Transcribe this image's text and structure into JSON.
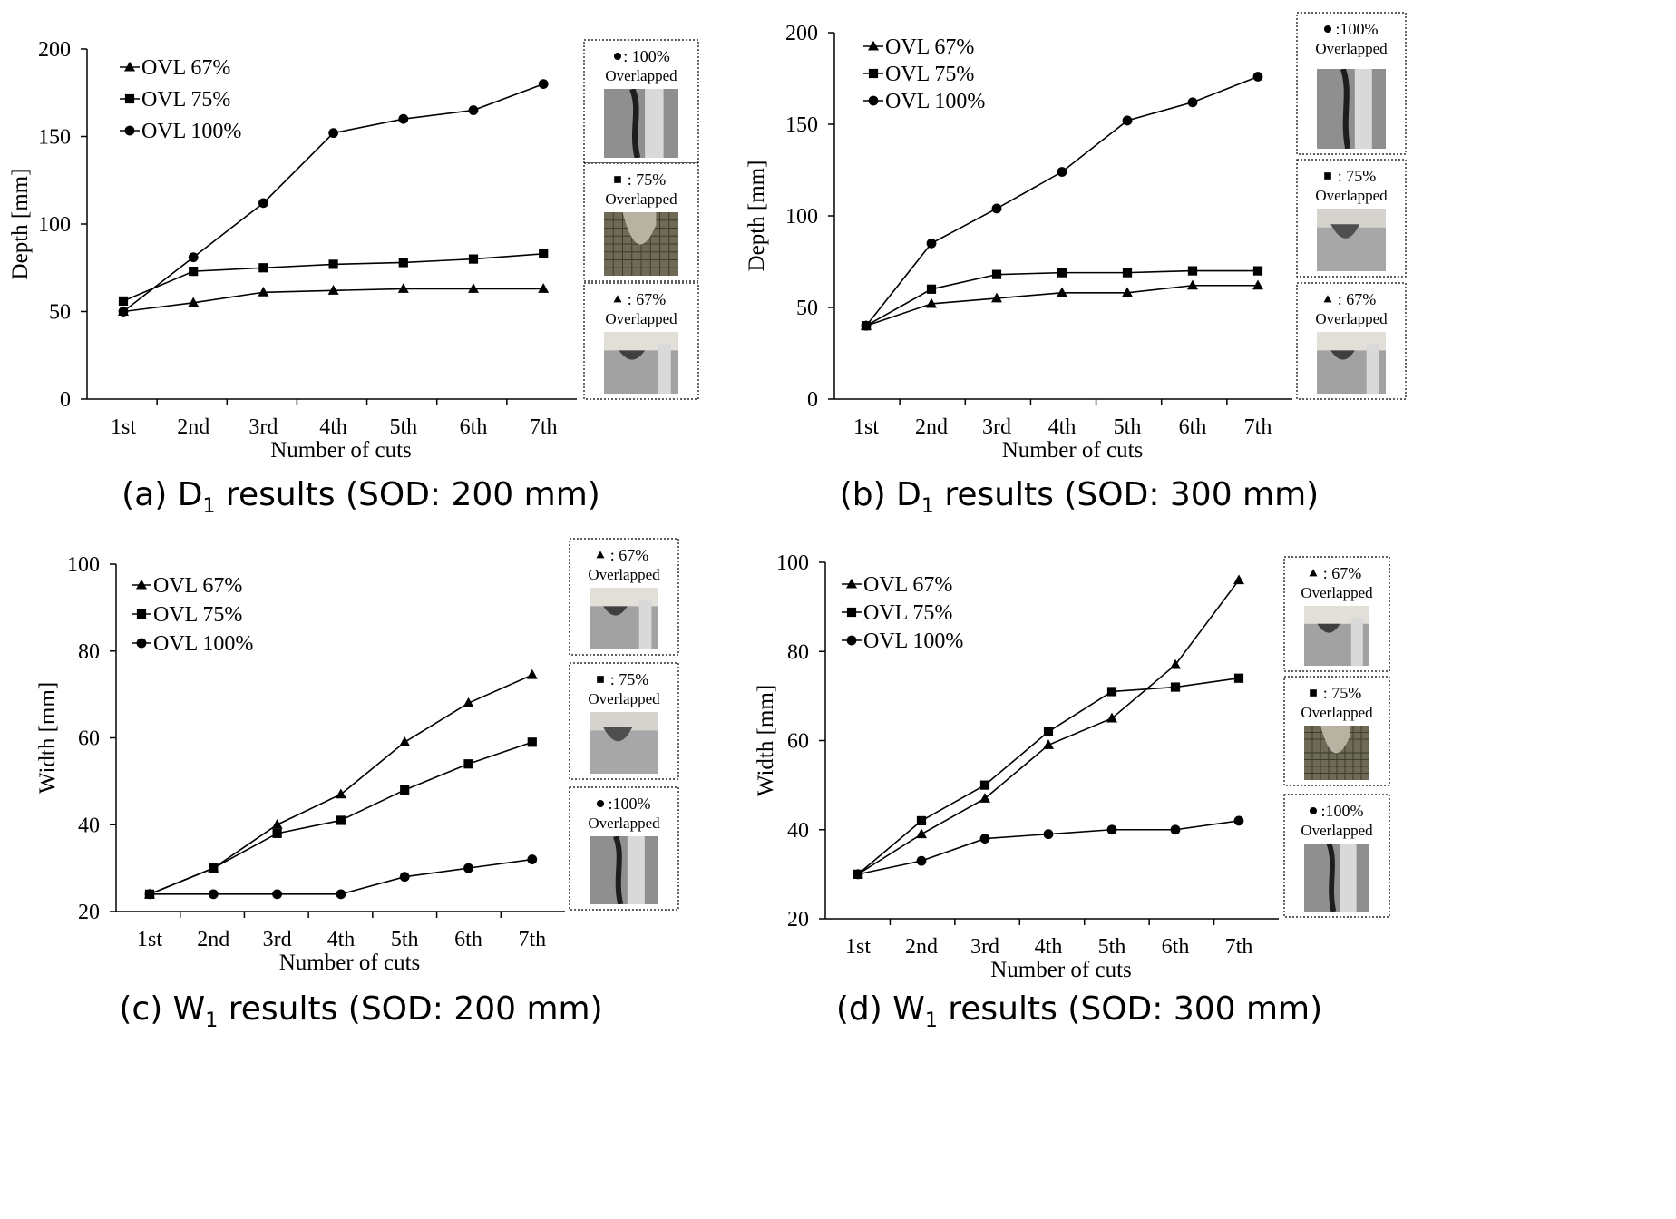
{
  "chart_data": [
    {
      "type": "line",
      "caption": {
        "pre": "(a) D",
        "sub": "1",
        "post": " results (SOD: 200 mm)"
      },
      "categories": [
        "1st",
        "2nd",
        "3rd",
        "4th",
        "5th",
        "6th",
        "7th"
      ],
      "xlabel": "Number of cuts",
      "ylabel": "Depth [mm]",
      "ylim": [
        0,
        200
      ],
      "yticks": [
        0,
        50,
        100,
        150,
        200
      ],
      "legend_position": "top-left",
      "series": [
        {
          "name": "OVL 67%",
          "marker": "triangle",
          "values": [
            50,
            55,
            61,
            62,
            63,
            63,
            63
          ]
        },
        {
          "name": "OVL 75%",
          "marker": "square",
          "values": [
            56,
            73,
            75,
            77,
            78,
            80,
            83
          ]
        },
        {
          "name": "OVL 100%",
          "marker": "circle",
          "values": [
            50,
            81,
            112,
            152,
            160,
            165,
            180
          ]
        }
      ],
      "insets": [
        {
          "marker": "circle",
          "label": ": 100%",
          "sub": "Overlapped",
          "photo": "slot-100"
        },
        {
          "marker": "square",
          "label": ": 75%",
          "sub": "Overlapped",
          "photo": "grid-75"
        },
        {
          "marker": "triangle",
          "label": ": 67%",
          "sub": "Overlapped",
          "photo": "groove-67"
        }
      ]
    },
    {
      "type": "line",
      "caption": {
        "pre": "(b) D",
        "sub": "1",
        "post": " results (SOD: 300 mm)"
      },
      "categories": [
        "1st",
        "2nd",
        "3rd",
        "4th",
        "5th",
        "6th",
        "7th"
      ],
      "xlabel": "Number of cuts",
      "ylabel": "Depth [mm]",
      "ylim": [
        0,
        200
      ],
      "yticks": [
        0,
        50,
        100,
        150,
        200
      ],
      "legend_position": "top-left",
      "series": [
        {
          "name": "OVL 67%",
          "marker": "triangle",
          "values": [
            40,
            52,
            55,
            58,
            58,
            62,
            62
          ]
        },
        {
          "name": "OVL 75%",
          "marker": "square",
          "values": [
            40,
            60,
            68,
            69,
            69,
            70,
            70
          ]
        },
        {
          "name": "OVL 100%",
          "marker": "circle",
          "values": [
            40,
            85,
            104,
            124,
            152,
            162,
            176
          ]
        }
      ],
      "insets": [
        {
          "marker": "circle",
          "label": ":100%",
          "sub": "Overlapped",
          "photo": "slot-100"
        },
        {
          "marker": "square",
          "label": ": 75%",
          "sub": "Overlapped",
          "photo": "groove-75"
        },
        {
          "marker": "triangle",
          "label": ": 67%",
          "sub": "Overlapped",
          "photo": "groove-67"
        }
      ]
    },
    {
      "type": "line",
      "caption": {
        "pre": "(c) W",
        "sub": "1",
        "post": " results (SOD: 200 mm)"
      },
      "categories": [
        "1st",
        "2nd",
        "3rd",
        "4th",
        "5th",
        "6th",
        "7th"
      ],
      "xlabel": "Number of cuts",
      "ylabel": "Width [mm]",
      "ylim": [
        20,
        100
      ],
      "yticks": [
        20,
        40,
        60,
        80,
        100
      ],
      "legend_position": "top-left",
      "series": [
        {
          "name": "OVL 67%",
          "marker": "triangle",
          "values": [
            24,
            30,
            40,
            47,
            59,
            68,
            74.5
          ]
        },
        {
          "name": "OVL 75%",
          "marker": "square",
          "values": [
            24,
            30,
            38,
            41,
            48,
            54,
            59
          ]
        },
        {
          "name": "OVL 100%",
          "marker": "circle",
          "values": [
            24,
            24,
            24,
            24,
            28,
            30,
            32
          ]
        }
      ],
      "insets": [
        {
          "marker": "triangle",
          "label": ": 67%",
          "sub": "Overlapped",
          "photo": "groove-67"
        },
        {
          "marker": "square",
          "label": ": 75%",
          "sub": "Overlapped",
          "photo": "groove-75"
        },
        {
          "marker": "circle",
          "label": ":100%",
          "sub": "Overlapped",
          "photo": "slot-100"
        }
      ]
    },
    {
      "type": "line",
      "caption": {
        "pre": "(d) W",
        "sub": "1",
        "post": " results (SOD: 300 mm)"
      },
      "categories": [
        "1st",
        "2nd",
        "3rd",
        "4th",
        "5th",
        "6th",
        "7th"
      ],
      "xlabel": "Number of cuts",
      "ylabel": "Width [mm]",
      "ylim": [
        20,
        100
      ],
      "yticks": [
        20,
        40,
        60,
        80,
        100
      ],
      "legend_position": "top-left",
      "series": [
        {
          "name": "OVL 67%",
          "marker": "triangle",
          "values": [
            30,
            39,
            47,
            59,
            65,
            77,
            96
          ]
        },
        {
          "name": "OVL 75%",
          "marker": "square",
          "values": [
            30,
            42,
            50,
            62,
            71,
            72,
            74
          ]
        },
        {
          "name": "OVL 100%",
          "marker": "circle",
          "values": [
            30,
            33,
            38,
            39,
            40,
            40,
            42
          ]
        }
      ],
      "insets": [
        {
          "marker": "triangle",
          "label": ": 67%",
          "sub": "Overlapped",
          "photo": "groove-67"
        },
        {
          "marker": "square",
          "label": ": 75%",
          "sub": "Overlapped",
          "photo": "grid-75"
        },
        {
          "marker": "circle",
          "label": ":100%",
          "sub": "Overlapped",
          "photo": "slot-100"
        }
      ]
    }
  ]
}
